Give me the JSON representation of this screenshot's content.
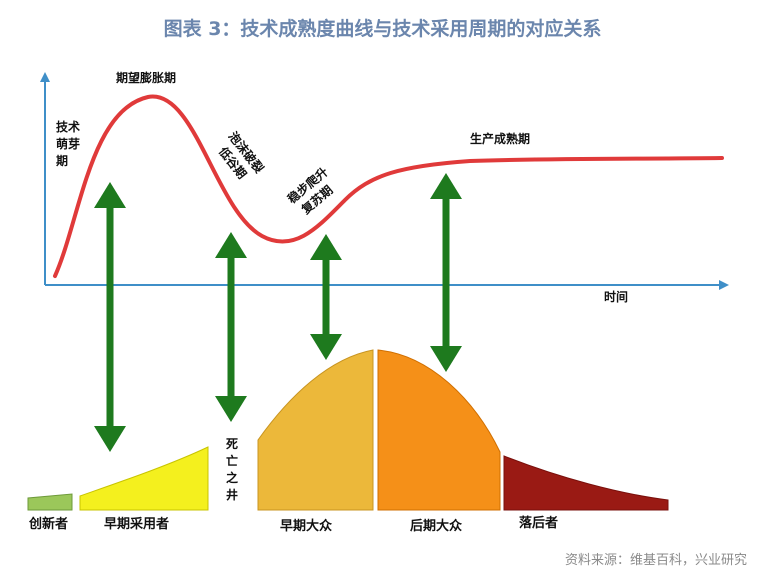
{
  "title": "图表 3：技术成熟度曲线与技术采用周期的对应关系",
  "source": "资料来源：维基百科，兴业研究",
  "hype_curve": {
    "phases": {
      "trigger": [
        "技术",
        "萌芽",
        "期"
      ],
      "peak": "期望膨胀期",
      "trough": [
        "泡沫破裂",
        "低谷期"
      ],
      "slope": [
        "稳步爬升",
        "复苏期"
      ],
      "plateau": "生产成熟期"
    },
    "x_axis_label": "时间"
  },
  "adoption": {
    "segments": [
      "创新者",
      "早期采用者",
      "早期大众",
      "后期大众",
      "落后者"
    ],
    "chasm": [
      "死",
      "亡",
      "之",
      "井"
    ]
  },
  "colors": {
    "curve": "#e03a3a",
    "axis": "#3f8fc8",
    "arrow": "#1e7a1e",
    "innovators": "#9bc75a",
    "early_adopters": "#f4f01e",
    "early_majority": "#ecb83a",
    "late_majority": "#f59018",
    "laggards": "#9a1a14"
  }
}
